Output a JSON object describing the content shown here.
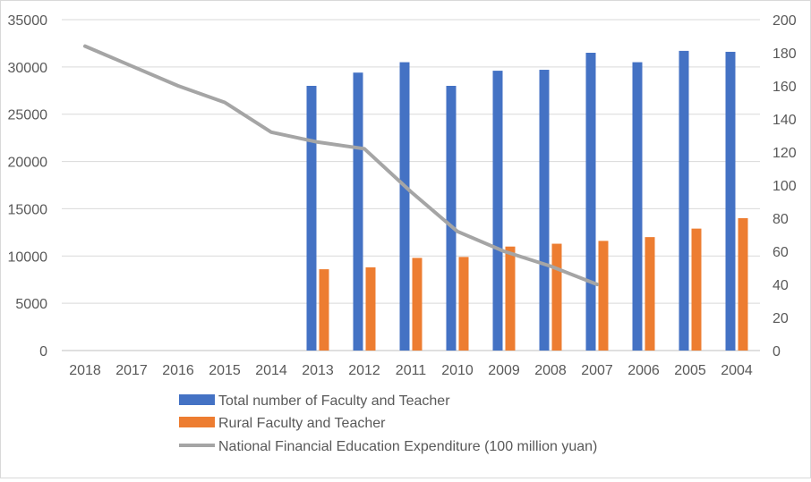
{
  "chart_data": {
    "type": "bar",
    "categories": [
      "2018",
      "2017",
      "2016",
      "2015",
      "2014",
      "2013",
      "2012",
      "2011",
      "2010",
      "2009",
      "2008",
      "2007",
      "2006",
      "2005",
      "2004"
    ],
    "y_left_ticks": [
      "0",
      "5000",
      "10000",
      "15000",
      "20000",
      "25000",
      "30000",
      "35000"
    ],
    "y_right_ticks": [
      "0",
      "20",
      "40",
      "60",
      "80",
      "100",
      "120",
      "140",
      "160",
      "180",
      "200"
    ],
    "ylim_left": [
      0,
      35000
    ],
    "ylim_right": [
      0,
      200
    ],
    "grid": true,
    "legend_position": "bottom",
    "series": [
      {
        "name": "Total number of Faculty and Teacher",
        "type": "bar",
        "axis": "left",
        "color": "#4472c4",
        "values": [
          null,
          null,
          null,
          null,
          null,
          28000,
          29400,
          30500,
          28000,
          29600,
          29700,
          31500,
          30500,
          31700,
          31600
        ]
      },
      {
        "name": "Rural Faculty and Teacher",
        "type": "bar",
        "axis": "left",
        "color": "#ed7d31",
        "values": [
          null,
          null,
          null,
          null,
          null,
          8600,
          8800,
          9800,
          9900,
          11000,
          11300,
          11600,
          12000,
          12900,
          14000
        ]
      },
      {
        "name": "National Financial Education Expenditure (100 million yuan)",
        "type": "line",
        "axis": "right",
        "color": "#a5a5a5",
        "values": [
          184,
          172,
          160,
          150,
          132,
          126,
          122,
          96,
          72,
          60,
          51,
          40,
          null,
          null,
          null
        ]
      }
    ]
  }
}
